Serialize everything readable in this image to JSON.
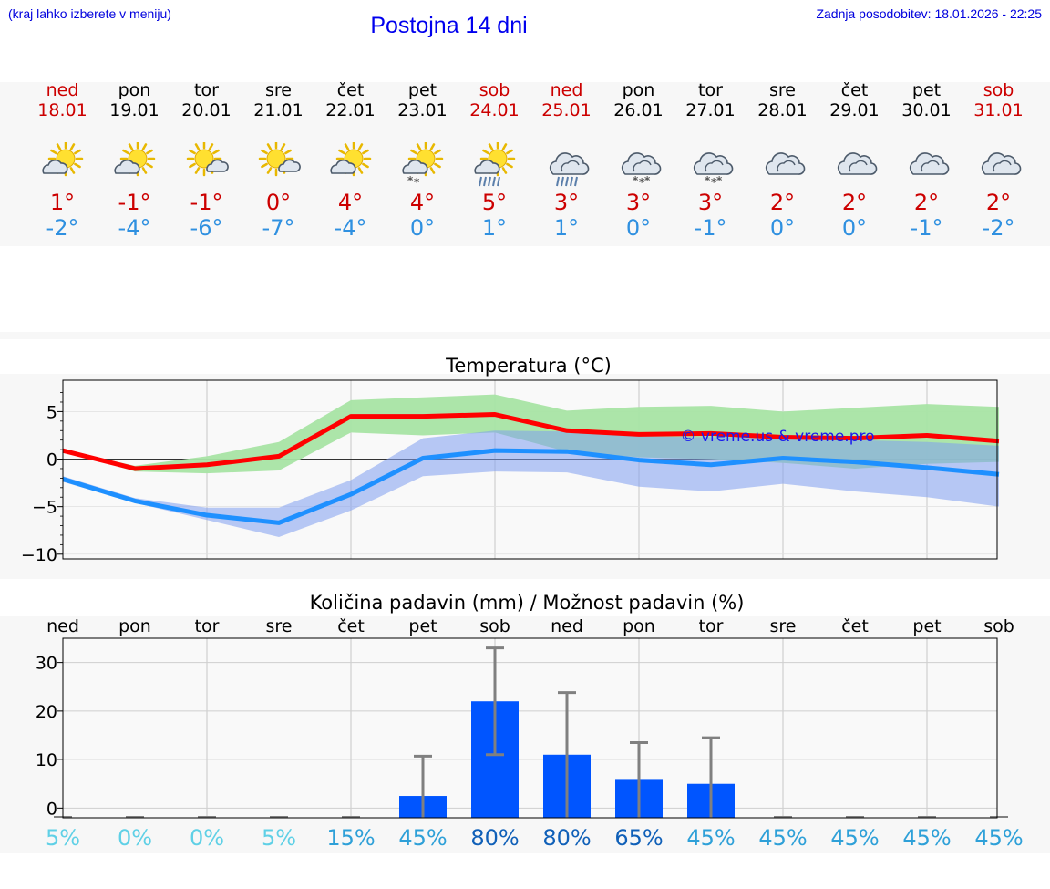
{
  "header": {
    "left_link": "(kraj lahko izberete v meniju)",
    "title": "Postojna 14 dni",
    "updated": "Zadnja posodobitev: 18.01.2026 - 22:25"
  },
  "colors": {
    "weekend": "#cc0000",
    "tmax": "#cc0000",
    "tmin": "#2f90e0",
    "max_line": "#ff0000",
    "min_line": "#1e90ff",
    "max_band": "#a8e4a4",
    "min_band": "#a8bff0",
    "overlap_band": "#6fb9a7",
    "bar": "#0055ff",
    "errorbar": "#808080"
  },
  "forecast": [
    {
      "day": "ned",
      "date": "18.01",
      "icon": "partly-sunny-icon",
      "tmax": "1°",
      "tmin": "-2°",
      "weekend": true
    },
    {
      "day": "pon",
      "date": "19.01",
      "icon": "partly-sunny-icon",
      "tmax": "-1°",
      "tmin": "-4°",
      "weekend": false
    },
    {
      "day": "tor",
      "date": "20.01",
      "icon": "sun-small-cloud-icon",
      "tmax": "-1°",
      "tmin": "-6°",
      "weekend": false
    },
    {
      "day": "sre",
      "date": "21.01",
      "icon": "sun-small-cloud-icon",
      "tmax": "0°",
      "tmin": "-7°",
      "weekend": false
    },
    {
      "day": "čet",
      "date": "22.01",
      "icon": "partly-sunny-icon",
      "tmax": "4°",
      "tmin": "-4°",
      "weekend": false
    },
    {
      "day": "pet",
      "date": "23.01",
      "icon": "partly-sunny-snow-icon",
      "tmax": "4°",
      "tmin": "0°",
      "weekend": false
    },
    {
      "day": "sob",
      "date": "24.01",
      "icon": "partly-sunny-rain-icon",
      "tmax": "5°",
      "tmin": "1°",
      "weekend": true
    },
    {
      "day": "ned",
      "date": "25.01",
      "icon": "cloud-rain-icon",
      "tmax": "3°",
      "tmin": "1°",
      "weekend": true
    },
    {
      "day": "pon",
      "date": "26.01",
      "icon": "cloud-snow-icon",
      "tmax": "3°",
      "tmin": "0°",
      "weekend": false
    },
    {
      "day": "tor",
      "date": "27.01",
      "icon": "cloud-snow-icon",
      "tmax": "3°",
      "tmin": "-1°",
      "weekend": false
    },
    {
      "day": "sre",
      "date": "28.01",
      "icon": "cloudy-icon",
      "tmax": "2°",
      "tmin": "0°",
      "weekend": false
    },
    {
      "day": "čet",
      "date": "29.01",
      "icon": "cloudy-icon",
      "tmax": "2°",
      "tmin": "0°",
      "weekend": false
    },
    {
      "day": "pet",
      "date": "30.01",
      "icon": "cloudy-icon",
      "tmax": "2°",
      "tmin": "-1°",
      "weekend": false
    },
    {
      "day": "sob",
      "date": "31.01",
      "icon": "cloudy-icon",
      "tmax": "2°",
      "tmin": "-2°",
      "weekend": true
    }
  ],
  "chart_data": [
    {
      "type": "line",
      "title": "Temperatura (°C)",
      "watermark": "© vreme.us & vreme.pro",
      "xlabel": "",
      "ylabel": "",
      "x": [
        0,
        1,
        2,
        3,
        4,
        5,
        6,
        7,
        8,
        9,
        10,
        11,
        12,
        13
      ],
      "ylim": [
        -10.5,
        8.3
      ],
      "yticks": [
        5,
        0,
        -5,
        -10
      ],
      "ytick_labels": [
        "5",
        "0",
        "−5",
        "−10"
      ],
      "grid": true,
      "series": [
        {
          "name": "max",
          "values": [
            0.9,
            -1.0,
            -0.6,
            0.3,
            4.5,
            4.5,
            4.7,
            3.0,
            2.6,
            2.7,
            2.3,
            2.2,
            2.5,
            1.9
          ],
          "band_low": [
            0.9,
            -1.3,
            -1.5,
            -1.2,
            2.8,
            2.5,
            2.8,
            0.8,
            0.2,
            0.0,
            -0.4,
            -1.0,
            -0.5,
            -0.3
          ],
          "band_high": [
            1.0,
            -0.7,
            0.3,
            1.8,
            6.2,
            6.5,
            6.8,
            5.1,
            5.5,
            5.6,
            5.0,
            5.4,
            5.8,
            5.5
          ]
        },
        {
          "name": "min",
          "values": [
            -2.1,
            -4.4,
            -5.9,
            -6.7,
            -3.7,
            0.1,
            0.9,
            0.8,
            -0.1,
            -0.6,
            0.1,
            -0.3,
            -0.9,
            -1.6
          ],
          "band_low": [
            -2.4,
            -4.6,
            -6.4,
            -8.2,
            -5.4,
            -1.8,
            -1.3,
            -1.4,
            -2.9,
            -3.4,
            -2.6,
            -3.4,
            -4.0,
            -5.0
          ],
          "band_high": [
            -1.8,
            -4.1,
            -5.1,
            -5.1,
            -2.2,
            2.2,
            3.0,
            2.9,
            2.4,
            2.3,
            2.3,
            2.0,
            1.8,
            1.4
          ]
        }
      ]
    },
    {
      "type": "bar",
      "title": "Količina padavin (mm) / Možnost padavin (%)",
      "categories": [
        "ned",
        "pon",
        "tor",
        "sre",
        "čet",
        "pet",
        "sob",
        "ned",
        "pon",
        "tor",
        "sre",
        "čet",
        "pet",
        "sob"
      ],
      "values": [
        0,
        0,
        0,
        0,
        0,
        2.5,
        22,
        11,
        6,
        5,
        0,
        0,
        0,
        0
      ],
      "error_high": [
        0,
        0,
        0,
        0,
        0,
        10.7,
        33,
        23.8,
        13.5,
        14.5,
        0,
        0,
        0,
        0
      ],
      "error_low": [
        0,
        0,
        0,
        0,
        0,
        0,
        11,
        0,
        0,
        0,
        0,
        0,
        0,
        0
      ],
      "probability": [
        "5%",
        "0%",
        "0%",
        "5%",
        "15%",
        "45%",
        "80%",
        "80%",
        "65%",
        "45%",
        "45%",
        "45%",
        "45%",
        "45%"
      ],
      "probability_values": [
        5,
        0,
        0,
        5,
        15,
        45,
        80,
        80,
        65,
        45,
        45,
        45,
        45,
        45
      ],
      "ylim": [
        -2,
        35
      ],
      "yticks": [
        0,
        10,
        20,
        30
      ],
      "ytick_labels": [
        "0",
        "10",
        "20",
        "30"
      ],
      "grid": true
    }
  ]
}
